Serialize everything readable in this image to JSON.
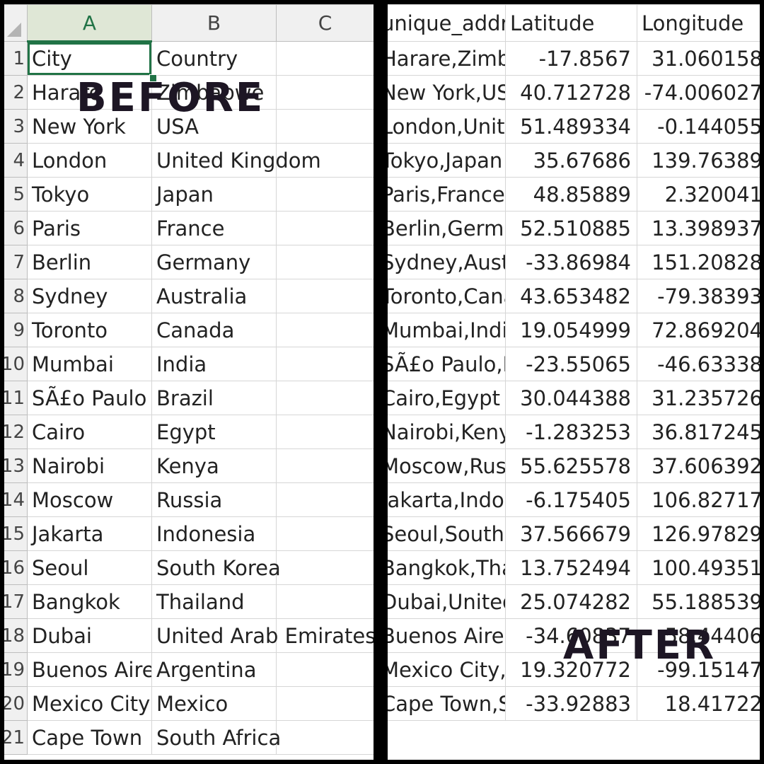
{
  "before": {
    "column_headers": [
      "A",
      "B",
      "C"
    ],
    "rows": [
      {
        "num": "1",
        "city": "City",
        "country": "Country"
      },
      {
        "num": "2",
        "city": "Harare",
        "country": "Zimbabwe"
      },
      {
        "num": "3",
        "city": "New York",
        "country": "USA"
      },
      {
        "num": "4",
        "city": "London",
        "country": "United Kingdom"
      },
      {
        "num": "5",
        "city": "Tokyo",
        "country": "Japan"
      },
      {
        "num": "6",
        "city": "Paris",
        "country": "France"
      },
      {
        "num": "7",
        "city": "Berlin",
        "country": "Germany"
      },
      {
        "num": "8",
        "city": "Sydney",
        "country": "Australia"
      },
      {
        "num": "9",
        "city": "Toronto",
        "country": "Canada"
      },
      {
        "num": "10",
        "city": "Mumbai",
        "country": "India"
      },
      {
        "num": "11",
        "city": "SÃ£o Paulo",
        "country": "Brazil"
      },
      {
        "num": "12",
        "city": "Cairo",
        "country": "Egypt"
      },
      {
        "num": "13",
        "city": "Nairobi",
        "country": "Kenya"
      },
      {
        "num": "14",
        "city": "Moscow",
        "country": "Russia"
      },
      {
        "num": "15",
        "city": "Jakarta",
        "country": "Indonesia"
      },
      {
        "num": "16",
        "city": "Seoul",
        "country": "South Korea"
      },
      {
        "num": "17",
        "city": "Bangkok",
        "country": "Thailand"
      },
      {
        "num": "18",
        "city": "Dubai",
        "country": "United Arab Emirates"
      },
      {
        "num": "19",
        "city": "Buenos Aires",
        "country": "Argentina"
      },
      {
        "num": "20",
        "city": "Mexico City",
        "country": "Mexico"
      },
      {
        "num": "21",
        "city": "Cape Town",
        "country": "South Africa"
      }
    ]
  },
  "after": {
    "headers": [
      "unique_address",
      "Latitude",
      "Longitude"
    ],
    "rows": [
      {
        "addr": "Harare,Zimbabwe",
        "lat": "-17.8567",
        "lon": "31.060158"
      },
      {
        "addr": "New York,USA",
        "lat": "40.712728",
        "lon": "-74.006027"
      },
      {
        "addr": "London,United Kingdom",
        "lat": "51.489334",
        "lon": "-0.144055"
      },
      {
        "addr": "Tokyo,Japan",
        "lat": "35.67686",
        "lon": "139.76389"
      },
      {
        "addr": "Paris,France",
        "lat": "48.85889",
        "lon": "2.320041"
      },
      {
        "addr": "Berlin,Germany",
        "lat": "52.510885",
        "lon": "13.398937"
      },
      {
        "addr": "Sydney,Australia",
        "lat": "-33.86984",
        "lon": "151.20828"
      },
      {
        "addr": "Toronto,Canada",
        "lat": "43.653482",
        "lon": "-79.38393"
      },
      {
        "addr": "Mumbai,India",
        "lat": "19.054999",
        "lon": "72.869204"
      },
      {
        "addr": "SÃ£o Paulo,Brazil",
        "lat": "-23.55065",
        "lon": "-46.63338"
      },
      {
        "addr": "Cairo,Egypt",
        "lat": "30.044388",
        "lon": "31.235726"
      },
      {
        "addr": "Nairobi,Kenya",
        "lat": "-1.283253",
        "lon": "36.817245"
      },
      {
        "addr": "Moscow,Russia",
        "lat": "55.625578",
        "lon": "37.606392"
      },
      {
        "addr": "Jakarta,Indonesia",
        "lat": "-6.175405",
        "lon": "106.82717"
      },
      {
        "addr": "Seoul,South Korea",
        "lat": "37.566679",
        "lon": "126.97829"
      },
      {
        "addr": "Bangkok,Thailand",
        "lat": "13.752494",
        "lon": "100.49351"
      },
      {
        "addr": "Dubai,United Arab Emirates",
        "lat": "25.074282",
        "lon": "55.188539"
      },
      {
        "addr": "Buenos Aires,Argentina",
        "lat": "-34.60837",
        "lon": "-58.44406"
      },
      {
        "addr": "Mexico City,Mexico",
        "lat": "19.320772",
        "lon": "-99.15147"
      },
      {
        "addr": "Cape Town,South Africa",
        "lat": "-33.92883",
        "lon": "18.41722"
      }
    ]
  },
  "labels": {
    "before": "BEFORE",
    "after": "AFTER"
  },
  "colors": {
    "excel_green": "#217346",
    "header_bg": "#f0f0f0",
    "label_text": "#1d1624"
  }
}
